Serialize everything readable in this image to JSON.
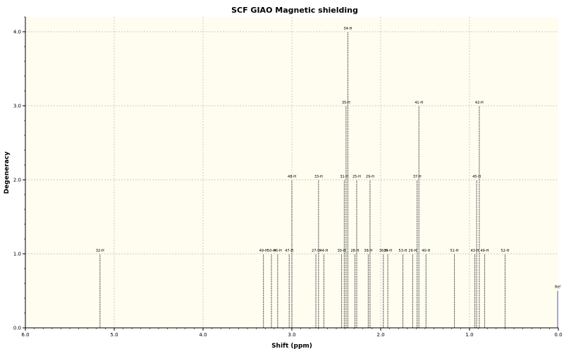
{
  "chart_data": {
    "type": "bar",
    "title": "SCF GIAO Magnetic shielding",
    "xlabel": "Shift (ppm)",
    "ylabel": "Degeneracy",
    "xlim": [
      6.0,
      0.0
    ],
    "ylim": [
      0.0,
      4.2
    ],
    "x_reversed": true,
    "grid": true,
    "x_ticks": [
      "6.0",
      "5.0",
      "4.0",
      "3.0",
      "2.0",
      "1.0",
      "0.0"
    ],
    "y_ticks": [
      "0.0",
      "1.0",
      "2.0",
      "3.0",
      "4.0"
    ],
    "peaks": [
      {
        "label": "32-H",
        "shift": 5.16,
        "degeneracy": 1
      },
      {
        "label": "49-H",
        "shift": 3.32,
        "degeneracy": 1
      },
      {
        "label": "50-H",
        "shift": 3.23,
        "degeneracy": 1
      },
      {
        "label": "46-H",
        "shift": 3.16,
        "degeneracy": 1
      },
      {
        "label": "47-H",
        "shift": 3.03,
        "degeneracy": 1
      },
      {
        "label": "48-H",
        "shift": 3.0,
        "degeneracy": 2
      },
      {
        "label": "27-H",
        "shift": 2.73,
        "degeneracy": 1
      },
      {
        "label": "33-H",
        "shift": 2.7,
        "degeneracy": 2
      },
      {
        "label": "44-H",
        "shift": 2.64,
        "degeneracy": 1
      },
      {
        "label": "30-H",
        "shift": 2.44,
        "degeneracy": 1
      },
      {
        "label": "31-H",
        "shift": 2.41,
        "degeneracy": 2
      },
      {
        "label": "35-H",
        "shift": 2.39,
        "degeneracy": 3
      },
      {
        "label": "34-H",
        "shift": 2.37,
        "degeneracy": 4
      },
      {
        "label": "28-H",
        "shift": 2.29,
        "degeneracy": 1
      },
      {
        "label": "25-H",
        "shift": 2.27,
        "degeneracy": 2
      },
      {
        "label": "38-H",
        "shift": 2.14,
        "degeneracy": 1
      },
      {
        "label": "29-H",
        "shift": 2.12,
        "degeneracy": 2
      },
      {
        "label": "36-H",
        "shift": 1.97,
        "degeneracy": 1
      },
      {
        "label": "39-H",
        "shift": 1.92,
        "degeneracy": 1
      },
      {
        "label": "53-H",
        "shift": 1.75,
        "degeneracy": 1
      },
      {
        "label": "26-H",
        "shift": 1.64,
        "degeneracy": 1
      },
      {
        "label": "37-H",
        "shift": 1.59,
        "degeneracy": 2
      },
      {
        "label": "41-H",
        "shift": 1.57,
        "degeneracy": 3
      },
      {
        "label": "40-H",
        "shift": 1.49,
        "degeneracy": 1
      },
      {
        "label": "51-H",
        "shift": 1.17,
        "degeneracy": 1
      },
      {
        "label": "43-H",
        "shift": 0.94,
        "degeneracy": 1
      },
      {
        "label": "45-H",
        "shift": 0.92,
        "degeneracy": 2
      },
      {
        "label": "42-H",
        "shift": 0.89,
        "degeneracy": 3
      },
      {
        "label": "49-H",
        "shift": 0.83,
        "degeneracy": 1
      },
      {
        "label": "52-H",
        "shift": 0.6,
        "degeneracy": 1
      }
    ],
    "reference": {
      "label": "Ref",
      "shift": 0.0,
      "height": 0.5
    }
  },
  "colors": {
    "plot_bg": "#fefdf0",
    "grid": "#b8b8b0",
    "peak": "#333333",
    "reference": "#6a6ad8",
    "axis": "#000000"
  }
}
